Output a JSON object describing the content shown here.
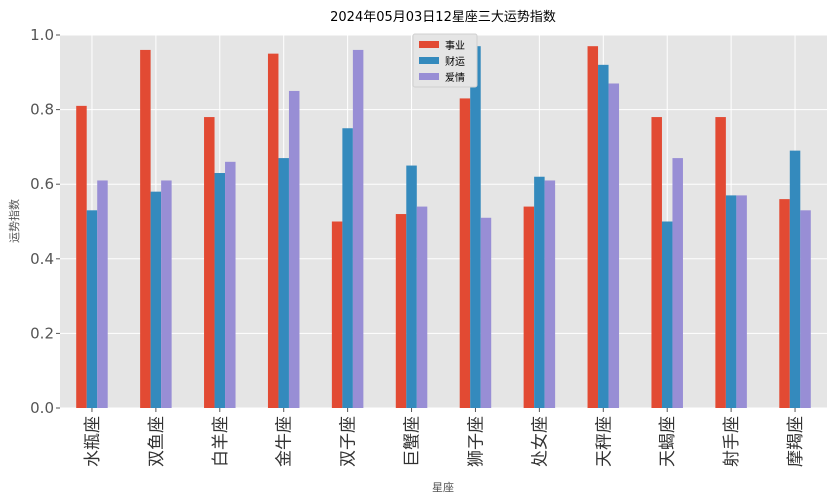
{
  "chart_data": {
    "type": "bar",
    "title": "2024年05月03日12星座三大运势指数",
    "xlabel": "星座",
    "ylabel": "运势指数",
    "ylim": [
      0,
      1.0
    ],
    "yticks": [
      "0.0",
      "0.2",
      "0.4",
      "0.6",
      "0.8",
      "1.0"
    ],
    "grid": true,
    "legend_position": "top-center",
    "categories": [
      "水瓶座",
      "双鱼座",
      "白羊座",
      "金牛座",
      "双子座",
      "巨蟹座",
      "狮子座",
      "处女座",
      "天秤座",
      "天蝎座",
      "射手座",
      "摩羯座"
    ],
    "series": [
      {
        "name": "事业",
        "color": "#E24A33",
        "values": [
          0.81,
          0.96,
          0.78,
          0.95,
          0.5,
          0.52,
          0.83,
          0.54,
          0.97,
          0.78,
          0.78,
          0.56
        ]
      },
      {
        "name": "财运",
        "color": "#348ABD",
        "values": [
          0.53,
          0.58,
          0.63,
          0.67,
          0.75,
          0.65,
          0.97,
          0.62,
          0.92,
          0.5,
          0.57,
          0.69
        ]
      },
      {
        "name": "爱情",
        "color": "#988ED5",
        "values": [
          0.61,
          0.61,
          0.66,
          0.85,
          0.96,
          0.54,
          0.51,
          0.61,
          0.87,
          0.67,
          0.57,
          0.53
        ]
      }
    ]
  }
}
